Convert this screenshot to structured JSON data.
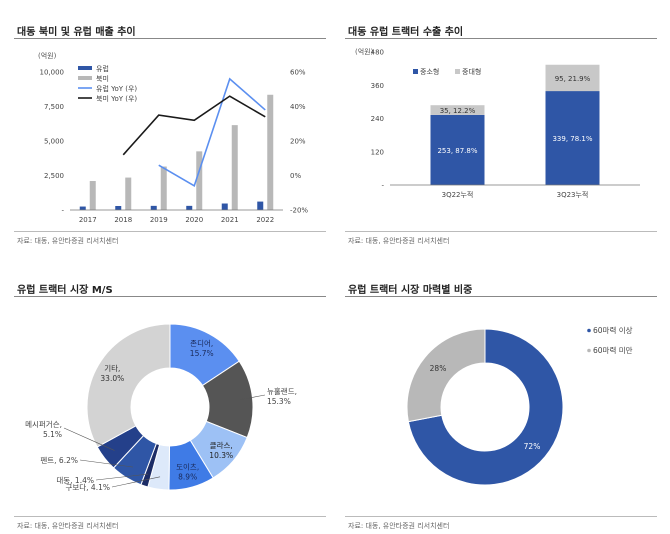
{
  "panels": {
    "tl": {
      "title": "대동 북미 및 유럽 매출 추이",
      "source": "자료: 대동, 유안타증권 리서치센터"
    },
    "tr": {
      "title": "대동 유럽 트랙터 수출 추이",
      "source": "자료: 대동, 유안타증권 리서치센터"
    },
    "bl": {
      "title": "유럽 트랙터 시장 M/S",
      "source": "자료: 대동, 유안타증권 리서치센터"
    },
    "br": {
      "title": "유럽 트랙터 시장 마력별 비중",
      "source": "자료: 대동, 유안타증권 리서치센터"
    }
  },
  "chart_data": [
    {
      "id": "tl",
      "type": "bar+line",
      "title": "대동 북미 및 유럽 매출 추이",
      "unit_label": "(억원)",
      "categories": [
        "2017",
        "2018",
        "2019",
        "2020",
        "2021",
        "2022"
      ],
      "y_left": {
        "min": 0,
        "max": 10000,
        "ticks": [
          0,
          2500,
          5000,
          7500,
          10000
        ],
        "tick_labels": [
          "-",
          "2,500",
          "5,000",
          "7,500",
          "10,000"
        ]
      },
      "y_right": {
        "min": -20,
        "max": 60,
        "ticks": [
          -20,
          0,
          20,
          40,
          60
        ],
        "tick_labels": [
          "-20%",
          "0%",
          "20%",
          "40%",
          "60%"
        ]
      },
      "series": [
        {
          "name": "유럽",
          "kind": "bar",
          "axis": "left",
          "color": "#2f56a6",
          "values": [
            250,
            290,
            300,
            300,
            470,
            610
          ]
        },
        {
          "name": "북미",
          "kind": "bar",
          "axis": "left",
          "color": "#b8b8b8",
          "values": [
            2100,
            2350,
            3150,
            4250,
            6150,
            8350
          ]
        },
        {
          "name": "유럽 YoY (우)",
          "kind": "line",
          "axis": "right",
          "color": "#5b8ff0",
          "values": [
            null,
            null,
            6,
            -6,
            56,
            38
          ]
        },
        {
          "name": "북미 YoY (우)",
          "kind": "line",
          "axis": "right",
          "color": "#1a1a1a",
          "values": [
            null,
            12,
            35,
            32,
            46,
            34
          ]
        }
      ]
    },
    {
      "id": "tr",
      "type": "stacked-bar",
      "title": "대동 유럽 트랙터 수출 추이",
      "unit_label": "(억원)",
      "categories": [
        "3Q22누적",
        "3Q23누적"
      ],
      "y": {
        "min": 0,
        "max": 480,
        "ticks": [
          0,
          120,
          240,
          360,
          480
        ],
        "tick_labels": [
          "-",
          "120",
          "240",
          "360",
          "480"
        ]
      },
      "series": [
        {
          "name": "중소형",
          "color": "#2f56a6",
          "values": [
            253,
            339
          ],
          "labels": [
            "253, 87.8%",
            "339, 78.1%"
          ]
        },
        {
          "name": "중대형",
          "color": "#c8c8c8",
          "values": [
            35,
            95
          ],
          "labels": [
            "35, 12.2%",
            "95, 21.9%"
          ]
        }
      ]
    },
    {
      "id": "bl",
      "type": "donut",
      "title": "유럽 트랙터 시장 M/S",
      "slices": [
        {
          "name": "존디어",
          "value": 15.7,
          "label_name": "존디어,",
          "label_value": "15.7%",
          "color": "#5b8ff0"
        },
        {
          "name": "뉴홀랜드",
          "value": 15.3,
          "label_name": "뉴홀랜드,",
          "label_value": "15.3%",
          "color": "#555555"
        },
        {
          "name": "클라스",
          "value": 10.3,
          "label_name": "클라스,",
          "label_value": "10.3%",
          "color": "#9dc1f5"
        },
        {
          "name": "도이츠",
          "value": 8.9,
          "label_name": "도이츠,",
          "label_value": "8.9%",
          "color": "#3f7be6"
        },
        {
          "name": "구보다",
          "value": 4.1,
          "label_name": "구보다,",
          "label_value": "4.1%",
          "color": "#dde9fa"
        },
        {
          "name": "대동",
          "value": 1.4,
          "label_name": "대동,",
          "label_value": "1.4%",
          "color": "#1c2c66"
        },
        {
          "name": "펜트",
          "value": 6.2,
          "label_name": "펜트,",
          "label_value": "6.2%",
          "color": "#2f56a6"
        },
        {
          "name": "메시퍼거슨",
          "value": 5.1,
          "label_name": "메시퍼거슨,",
          "label_value": "5.1%",
          "color": "#24408a"
        },
        {
          "name": "기타",
          "value": 33.0,
          "label_name": "기타,",
          "label_value": "33.0%",
          "color": "#d3d3d3"
        }
      ]
    },
    {
      "id": "br",
      "type": "donut",
      "title": "유럽 트랙터 시장 마력별 비중",
      "slices": [
        {
          "name": "60마력 이상",
          "value": 72,
          "label": "72%",
          "color": "#2f56a6"
        },
        {
          "name": "60마력 미만",
          "value": 28,
          "label": "28%",
          "color": "#b8b8b8"
        }
      ],
      "legend_position": "top-right"
    }
  ]
}
